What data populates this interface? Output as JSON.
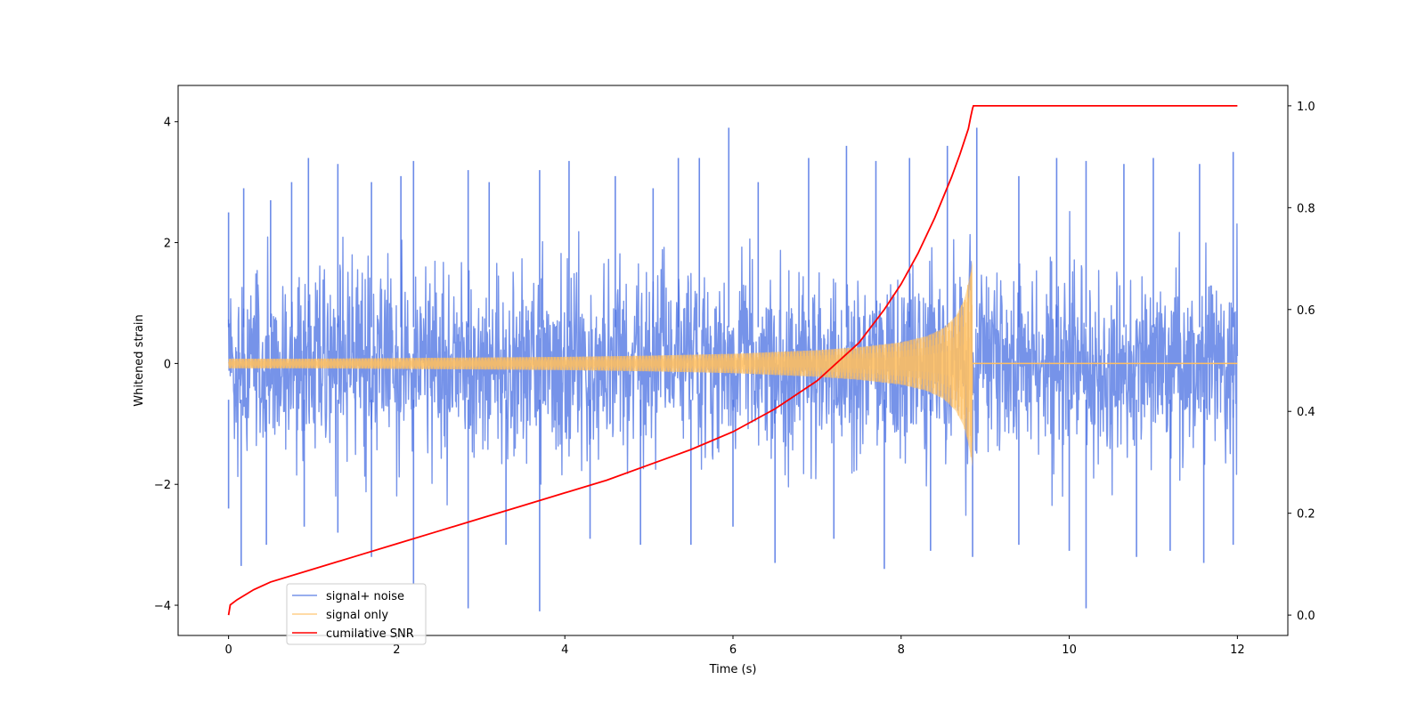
{
  "chart_data": {
    "type": "line",
    "xlabel": "Time (s)",
    "ylabel": "Whitened strain",
    "y2label": "",
    "xlim": [
      -0.6,
      12.6
    ],
    "ylim": [
      -4.5,
      4.6
    ],
    "y2lim": [
      -0.04,
      1.04
    ],
    "xticks": [
      0,
      2,
      4,
      6,
      8,
      10,
      12
    ],
    "yticks": [
      -4,
      -2,
      0,
      2,
      4
    ],
    "y2ticks": [
      0.0,
      0.2,
      0.4,
      0.6,
      0.8,
      1.0
    ],
    "xtick_labels": [
      "0",
      "2",
      "4",
      "6",
      "8",
      "10",
      "12"
    ],
    "ytick_labels": [
      "−4",
      "−2",
      "0",
      "2",
      "4"
    ],
    "y2tick_labels": [
      "0.0",
      "0.2",
      "0.4",
      "0.6",
      "0.8",
      "1.0"
    ],
    "grid": false,
    "legend_position": "lower-left",
    "series": [
      {
        "name": "signal+ noise",
        "axis": "left",
        "color": "#4169e1",
        "style": "dense noise trace",
        "x_range": [
          0,
          12
        ],
        "typical_envelope": [
          -1.6,
          1.6
        ],
        "peaks_x": [
          0.0,
          0.18,
          0.5,
          0.75,
          0.95,
          1.3,
          1.7,
          2.05,
          2.2,
          2.85,
          3.1,
          3.7,
          4.05,
          4.6,
          5.05,
          5.35,
          5.6,
          5.95,
          6.3,
          6.9,
          7.35,
          7.7,
          8.1,
          8.55,
          8.9,
          9.4,
          9.85,
          10.2,
          10.65,
          11.0,
          11.55,
          11.95
        ],
        "peaks_y": [
          2.5,
          2.9,
          2.7,
          3.0,
          3.4,
          3.3,
          3.0,
          3.1,
          3.35,
          3.2,
          3.0,
          3.2,
          3.35,
          3.1,
          2.9,
          3.4,
          3.4,
          3.9,
          3.0,
          3.4,
          3.6,
          3.35,
          3.4,
          3.6,
          3.9,
          3.1,
          3.4,
          3.35,
          3.3,
          3.4,
          3.3,
          3.5
        ],
        "troughs_x": [
          0.0,
          0.15,
          0.45,
          0.9,
          1.3,
          1.7,
          2.2,
          2.85,
          3.3,
          3.7,
          4.3,
          4.9,
          5.5,
          6.0,
          6.5,
          7.2,
          7.8,
          8.35,
          8.85,
          9.4,
          10.0,
          10.2,
          10.8,
          11.2,
          11.6,
          11.95
        ],
        "troughs_y": [
          -2.4,
          -3.35,
          -3.0,
          -2.7,
          -2.8,
          -3.2,
          -3.65,
          -4.05,
          -3.0,
          -4.1,
          -2.9,
          -3.0,
          -3.0,
          -2.7,
          -3.3,
          -2.9,
          -3.4,
          -3.1,
          -3.2,
          -3.0,
          -3.1,
          -4.05,
          -3.2,
          -3.1,
          -3.3,
          -3.0
        ]
      },
      {
        "name": "signal only",
        "axis": "left",
        "color": "#ffbf60",
        "style": "chirp",
        "x_range": [
          0,
          12
        ],
        "merger_time": 8.85,
        "envelope_x": [
          0,
          1,
          2,
          3,
          4,
          5,
          6,
          7,
          7.5,
          8,
          8.3,
          8.5,
          8.65,
          8.75,
          8.82,
          8.86
        ],
        "envelope_y": [
          0.08,
          0.08,
          0.09,
          0.1,
          0.11,
          0.13,
          0.16,
          0.22,
          0.27,
          0.35,
          0.45,
          0.58,
          0.78,
          1.05,
          1.45,
          1.8
        ]
      },
      {
        "name": "cumilative SNR",
        "axis": "right",
        "color": "#ff0000",
        "style": "line",
        "x": [
          0,
          0.02,
          0.1,
          0.3,
          0.5,
          1,
          1.5,
          2,
          2.5,
          3,
          3.5,
          4,
          4.5,
          5,
          5.5,
          6,
          6.5,
          7,
          7.5,
          7.8,
          8.0,
          8.2,
          8.4,
          8.5,
          8.6,
          8.7,
          8.75,
          8.8,
          8.83,
          8.85,
          8.86,
          12
        ],
        "y": [
          0.0,
          0.02,
          0.03,
          0.05,
          0.065,
          0.09,
          0.115,
          0.14,
          0.165,
          0.19,
          0.215,
          0.24,
          0.265,
          0.295,
          0.325,
          0.36,
          0.405,
          0.46,
          0.535,
          0.6,
          0.65,
          0.71,
          0.78,
          0.82,
          0.86,
          0.905,
          0.93,
          0.955,
          0.98,
          0.995,
          1.0,
          1.0
        ]
      }
    ]
  }
}
